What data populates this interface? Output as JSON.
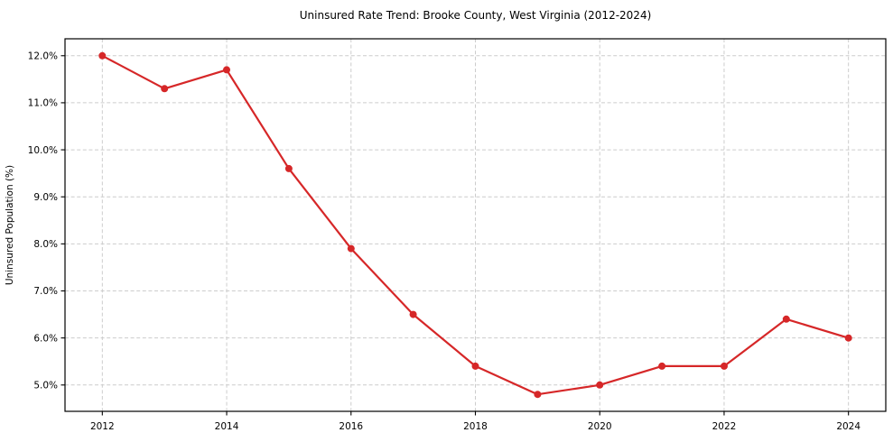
{
  "chart_data": {
    "type": "line",
    "title": "Uninsured Rate Trend: Brooke County, West Virginia (2012-2024)",
    "xlabel": "",
    "ylabel": "Uninsured Population (%)",
    "x": [
      2012,
      2013,
      2014,
      2015,
      2016,
      2017,
      2018,
      2019,
      2020,
      2021,
      2022,
      2023,
      2024
    ],
    "series": [
      {
        "name": "Uninsured Rate",
        "values": [
          12.0,
          11.3,
          11.7,
          9.6,
          7.9,
          6.5,
          5.4,
          4.8,
          5.0,
          5.4,
          5.4,
          6.4,
          6.0
        ]
      }
    ],
    "xtick_values": [
      2012,
      2014,
      2016,
      2018,
      2020,
      2022,
      2024
    ],
    "xtick_labels": [
      "2012",
      "2014",
      "2016",
      "2018",
      "2020",
      "2022",
      "2024"
    ],
    "ytick_values": [
      5.0,
      6.0,
      7.0,
      8.0,
      9.0,
      10.0,
      11.0,
      12.0
    ],
    "ytick_labels": [
      "5.0%",
      "6.0%",
      "7.0%",
      "8.0%",
      "9.0%",
      "10.0%",
      "11.0%",
      "12.0%"
    ],
    "xlim": [
      2011.4,
      2024.6
    ],
    "ylim": [
      4.44,
      12.36
    ],
    "grid": true,
    "style": {
      "line_color": "#d62728",
      "marker": "circle",
      "marker_radius": 4,
      "line_width": 2.2,
      "grid_color": "#cccccc",
      "grid_dash": "4 2.6",
      "spine_color": "#000000",
      "tick_color": "#000000",
      "text_color": "#000000",
      "background": "#ffffff"
    }
  }
}
